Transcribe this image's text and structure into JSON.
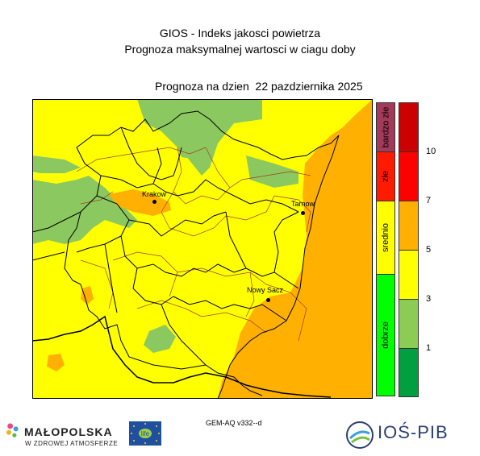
{
  "title_line1": "GIOS - Indeks jakosci powietrza",
  "title_line2": "Prognoza maksymalnej wartosci w ciagu doby",
  "forecast_label": "Prognoza na dzien  22 pazdziernika 2025",
  "cities": {
    "krakow": "Krakow",
    "tarnow": "Tarnow",
    "nowy_sacz": "Nowy Sacz"
  },
  "categories": [
    {
      "label": "bardzo złe",
      "color": "#a33a5a"
    },
    {
      "label": "złe",
      "color": "#ff1a00"
    },
    {
      "label": "srednio",
      "color": "#ffff00"
    },
    {
      "label": "dobrze",
      "color": "#00ff00"
    }
  ],
  "scale": {
    "colors": [
      "#cc0000",
      "#ff0000",
      "#ffb000",
      "#ffff00",
      "#8ccc55",
      "#00a040"
    ],
    "ticks": [
      "10",
      "7",
      "5",
      "3",
      "1"
    ]
  },
  "map_colors": {
    "green": "#8cc860",
    "yellow": "#ffff00",
    "orange": "#ffb000"
  },
  "model_label": "GEM-AQ v332--d",
  "logos": {
    "malopolska_name": "MAŁOPOLSKA",
    "malopolska_slogan": "W ZDROWEJ ATMOSFERZE",
    "life": "life",
    "ios": "IOŚ-PIB"
  }
}
